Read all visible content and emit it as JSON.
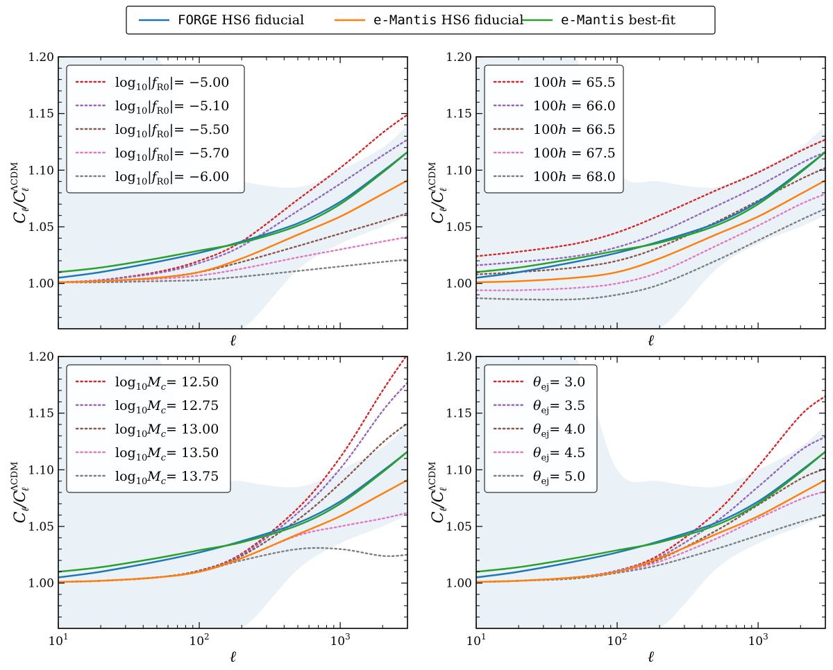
{
  "colors": {
    "blue": "#1f77b4",
    "orange": "#ff7f0e",
    "green": "#2ca02c",
    "red": "#d62728",
    "purple": "#9467bd",
    "brown": "#8c564b",
    "pink": "#e377c2",
    "gray": "#7f7f7f",
    "band": "#eaf2f8"
  },
  "top_legend": {
    "entries": [
      {
        "mono": "FORGE",
        "text": " HS6 fiducial",
        "color": "blue"
      },
      {
        "mono": "e-Mantis",
        "text": " HS6 fiducial",
        "color": "orange"
      },
      {
        "mono": "e-Mantis",
        "text": " best-fit",
        "color": "green"
      }
    ]
  },
  "chart_data": [
    {
      "type": "line",
      "panel": "top-left",
      "xscale": "log",
      "xlim": [
        10,
        3000
      ],
      "ylim": [
        0.96,
        1.2
      ],
      "yticks": [
        "1.00",
        "1.05",
        "1.10",
        "1.15",
        "1.20"
      ],
      "xticks_shown": false,
      "xlabel": "ℓ",
      "ylabel": "C_ℓ/C_ℓ^ΛCDM",
      "legend_position": "top-left",
      "x": [
        10,
        20,
        50,
        100,
        200,
        500,
        1000,
        2000,
        3000
      ],
      "band": {
        "upper": [
          1.2,
          1.2,
          1.2,
          1.1,
          1.09,
          1.085,
          1.1,
          1.12,
          1.14
        ],
        "lower": [
          0.96,
          0.96,
          0.96,
          0.96,
          0.96,
          1.012,
          1.035,
          1.05,
          1.06
        ]
      },
      "solid_series": [
        {
          "color": "blue",
          "values": [
            1.005,
            1.01,
            1.019,
            1.027,
            1.037,
            1.053,
            1.072,
            1.099,
            1.116
          ]
        },
        {
          "color": "orange",
          "values": [
            1.001,
            1.002,
            1.005,
            1.01,
            1.022,
            1.043,
            1.059,
            1.079,
            1.091
          ]
        },
        {
          "color": "green",
          "values": [
            1.01,
            1.014,
            1.022,
            1.029,
            1.036,
            1.051,
            1.07,
            1.098,
            1.116
          ]
        }
      ],
      "dotted_series": [
        {
          "name": "log₁₀|f_R0| = −5.00",
          "label_pre": "log",
          "label_sub": "10",
          "label_body": "|f",
          "label_sub2": "R0",
          "label_post": "|= −5.00",
          "color": "red",
          "values": [
            1.001,
            1.003,
            1.01,
            1.02,
            1.037,
            1.074,
            1.102,
            1.133,
            1.149
          ]
        },
        {
          "name": "log₁₀|f_R0| = −5.10",
          "label_pre": "log",
          "label_sub": "10",
          "label_body": "|f",
          "label_sub2": "R0",
          "label_post": "|= −5.10",
          "color": "purple",
          "values": [
            1.001,
            1.003,
            1.009,
            1.018,
            1.033,
            1.064,
            1.088,
            1.113,
            1.127
          ]
        },
        {
          "name": "log₁₀|f_R0| = −5.50",
          "label_pre": "log",
          "label_sub": "10",
          "label_body": "|f",
          "label_sub2": "R0",
          "label_post": "|= −5.50",
          "color": "brown",
          "values": [
            1.001,
            1.002,
            1.005,
            1.01,
            1.019,
            1.033,
            1.044,
            1.055,
            1.062
          ]
        },
        {
          "name": "log₁₀|f_R0| = −5.70",
          "label_pre": "log",
          "label_sub": "10",
          "label_body": "|f",
          "label_sub2": "R0",
          "label_post": "|= −5.70",
          "color": "pink",
          "values": [
            1.001,
            1.002,
            1.004,
            1.007,
            1.013,
            1.023,
            1.03,
            1.037,
            1.041
          ]
        },
        {
          "name": "log₁₀|f_R0| = −6.00",
          "label_pre": "log",
          "label_sub": "10",
          "label_body": "|f",
          "label_sub2": "R0",
          "label_post": "|= −6.00",
          "color": "gray",
          "values": [
            1.001,
            1.001,
            1.002,
            1.003,
            1.006,
            1.011,
            1.015,
            1.019,
            1.021
          ]
        }
      ]
    },
    {
      "type": "line",
      "panel": "top-right",
      "xscale": "log",
      "xlim": [
        10,
        3000
      ],
      "ylim": [
        0.96,
        1.2
      ],
      "yticks": [
        "1.00",
        "1.05",
        "1.10",
        "1.15",
        "1.20"
      ],
      "xticks_shown": false,
      "xlabel": "ℓ",
      "ylabel": "C_ℓ/C_ℓ^ΛCDM",
      "legend_position": "top-left",
      "x": [
        10,
        20,
        50,
        100,
        200,
        500,
        1000,
        2000,
        3000
      ],
      "band": {
        "upper": [
          1.2,
          1.2,
          1.2,
          1.1,
          1.09,
          1.085,
          1.1,
          1.12,
          1.14
        ],
        "lower": [
          0.96,
          0.96,
          0.96,
          0.96,
          0.96,
          1.012,
          1.035,
          1.05,
          1.06
        ]
      },
      "solid_series": [
        {
          "color": "blue",
          "values": [
            1.005,
            1.01,
            1.019,
            1.027,
            1.037,
            1.053,
            1.072,
            1.099,
            1.116
          ]
        },
        {
          "color": "orange",
          "values": [
            1.001,
            1.002,
            1.005,
            1.01,
            1.022,
            1.043,
            1.059,
            1.079,
            1.091
          ]
        },
        {
          "color": "green",
          "values": [
            1.01,
            1.014,
            1.022,
            1.029,
            1.036,
            1.051,
            1.07,
            1.098,
            1.116
          ]
        }
      ],
      "dotted_series": [
        {
          "name": "100h = 65.5",
          "label_pre": "100",
          "label_sub": "",
          "label_body": "h",
          "label_sub2": "",
          "label_post": " = 65.5",
          "color": "red",
          "values": [
            1.024,
            1.028,
            1.035,
            1.045,
            1.06,
            1.082,
            1.098,
            1.117,
            1.127
          ]
        },
        {
          "name": "100h = 66.0",
          "label_pre": "100",
          "label_sub": "",
          "label_body": "h",
          "label_sub2": "",
          "label_post": " = 66.0",
          "color": "purple",
          "values": [
            1.016,
            1.019,
            1.024,
            1.032,
            1.045,
            1.068,
            1.086,
            1.106,
            1.116
          ]
        },
        {
          "name": "100h = 66.5",
          "label_pre": "100",
          "label_sub": "",
          "label_body": "h",
          "label_sub2": "",
          "label_post": " = 66.5",
          "color": "brown",
          "values": [
            1.008,
            1.01,
            1.014,
            1.02,
            1.032,
            1.054,
            1.073,
            1.092,
            1.102
          ]
        },
        {
          "name": "100h = 67.5",
          "label_pre": "100",
          "label_sub": "",
          "label_body": "h",
          "label_sub2": "",
          "label_post": " = 67.5",
          "color": "pink",
          "values": [
            0.994,
            0.994,
            0.996,
            1.0,
            1.01,
            1.033,
            1.051,
            1.07,
            1.079
          ]
        },
        {
          "name": "100h = 68.0",
          "label_pre": "100",
          "label_sub": "",
          "label_body": "h",
          "label_sub2": "",
          "label_post": " = 68.0",
          "color": "gray",
          "values": [
            0.987,
            0.986,
            0.986,
            0.99,
            0.999,
            1.02,
            1.038,
            1.056,
            1.066
          ]
        }
      ]
    },
    {
      "type": "line",
      "panel": "bottom-left",
      "xscale": "log",
      "xlim": [
        10,
        3000
      ],
      "ylim": [
        0.96,
        1.2
      ],
      "yticks": [
        "1.00",
        "1.05",
        "1.10",
        "1.15",
        "1.20"
      ],
      "xticks_shown": true,
      "xlabel": "ℓ",
      "ylabel": "C_ℓ/C_ℓ^ΛCDM",
      "legend_position": "top-left",
      "x": [
        10,
        20,
        50,
        100,
        200,
        500,
        1000,
        2000,
        3000
      ],
      "band": {
        "upper": [
          1.2,
          1.2,
          1.2,
          1.1,
          1.09,
          1.085,
          1.1,
          1.12,
          1.14
        ],
        "lower": [
          0.96,
          0.96,
          0.96,
          0.96,
          0.96,
          1.012,
          1.035,
          1.05,
          1.06
        ]
      },
      "solid_series": [
        {
          "color": "blue",
          "values": [
            1.005,
            1.01,
            1.019,
            1.027,
            1.037,
            1.053,
            1.072,
            1.099,
            1.116
          ]
        },
        {
          "color": "orange",
          "values": [
            1.001,
            1.002,
            1.005,
            1.01,
            1.022,
            1.043,
            1.059,
            1.079,
            1.091
          ]
        },
        {
          "color": "green",
          "values": [
            1.01,
            1.014,
            1.022,
            1.029,
            1.036,
            1.051,
            1.07,
            1.098,
            1.116
          ]
        }
      ],
      "dotted_series": [
        {
          "name": "log₁₀M_c = 12.50",
          "label_pre": "log",
          "label_sub": "10",
          "label_body": "M",
          "label_sub2": "c",
          "label_post": "= 12.50",
          "color": "red",
          "values": [
            1.001,
            1.002,
            1.005,
            1.011,
            1.026,
            1.066,
            1.111,
            1.17,
            1.202
          ]
        },
        {
          "name": "log₁₀M_c = 12.75",
          "label_pre": "log",
          "label_sub": "10",
          "label_body": "M",
          "label_sub2": "c",
          "label_post": "= 12.75",
          "color": "purple",
          "values": [
            1.001,
            1.002,
            1.005,
            1.011,
            1.025,
            1.062,
            1.101,
            1.152,
            1.177
          ]
        },
        {
          "name": "log₁₀M_c = 13.00",
          "label_pre": "log",
          "label_sub": "10",
          "label_body": "M",
          "label_sub2": "c",
          "label_post": "= 13.00",
          "color": "brown",
          "values": [
            1.001,
            1.002,
            1.005,
            1.011,
            1.024,
            1.056,
            1.088,
            1.124,
            1.141
          ]
        },
        {
          "name": "log₁₀M_c = 13.50",
          "label_pre": "log",
          "label_sub": "10",
          "label_body": "M",
          "label_sub2": "c",
          "label_post": "= 13.50",
          "color": "pink",
          "values": [
            1.001,
            1.002,
            1.005,
            1.01,
            1.022,
            1.042,
            1.05,
            1.057,
            1.062
          ]
        },
        {
          "name": "log₁₀M_c = 13.75",
          "label_pre": "log",
          "label_sub": "10",
          "label_body": "M",
          "label_sub2": "c",
          "label_post": "= 13.75",
          "color": "gray",
          "values": [
            1.001,
            1.002,
            1.005,
            1.01,
            1.02,
            1.03,
            1.03,
            1.024,
            1.025
          ]
        }
      ]
    },
    {
      "type": "line",
      "panel": "bottom-right",
      "xscale": "log",
      "xlim": [
        10,
        3000
      ],
      "ylim": [
        0.96,
        1.2
      ],
      "yticks": [
        "1.00",
        "1.05",
        "1.10",
        "1.15",
        "1.20"
      ],
      "xticks_shown": true,
      "xlabel": "ℓ",
      "ylabel": "C_ℓ/C_ℓ^ΛCDM",
      "legend_position": "top-left",
      "x": [
        10,
        20,
        50,
        100,
        200,
        500,
        1000,
        2000,
        3000
      ],
      "band": {
        "upper": [
          1.2,
          1.2,
          1.2,
          1.1,
          1.09,
          1.085,
          1.1,
          1.12,
          1.14
        ],
        "lower": [
          0.96,
          0.96,
          0.96,
          0.96,
          0.96,
          1.012,
          1.035,
          1.05,
          1.06
        ]
      },
      "solid_series": [
        {
          "color": "blue",
          "values": [
            1.005,
            1.01,
            1.019,
            1.027,
            1.037,
            1.053,
            1.072,
            1.099,
            1.116
          ]
        },
        {
          "color": "orange",
          "values": [
            1.001,
            1.002,
            1.005,
            1.01,
            1.022,
            1.043,
            1.059,
            1.079,
            1.091
          ]
        },
        {
          "color": "green",
          "values": [
            1.01,
            1.014,
            1.022,
            1.029,
            1.036,
            1.051,
            1.07,
            1.098,
            1.116
          ]
        }
      ],
      "dotted_series": [
        {
          "name": "θ_ej = 3.0",
          "label_pre": "",
          "label_sub": "",
          "label_body": "θ",
          "label_sub2": "ej",
          "label_post": "= 3.0",
          "color": "red",
          "values": [
            1.001,
            1.002,
            1.005,
            1.011,
            1.025,
            1.062,
            1.103,
            1.148,
            1.165
          ]
        },
        {
          "name": "θ_ej = 3.5",
          "label_pre": "",
          "label_sub": "",
          "label_body": "θ",
          "label_sub2": "ej",
          "label_post": "= 3.5",
          "color": "purple",
          "values": [
            1.001,
            1.002,
            1.005,
            1.011,
            1.023,
            1.054,
            1.085,
            1.117,
            1.129
          ]
        },
        {
          "name": "θ_ej = 4.0",
          "label_pre": "",
          "label_sub": "",
          "label_body": "θ",
          "label_sub2": "ej",
          "label_post": "= 4.0",
          "color": "brown",
          "values": [
            1.001,
            1.002,
            1.005,
            1.01,
            1.021,
            1.046,
            1.069,
            1.092,
            1.101
          ]
        },
        {
          "name": "θ_ej = 4.5",
          "label_pre": "",
          "label_sub": "",
          "label_body": "θ",
          "label_sub2": "ej",
          "label_post": "= 4.5",
          "color": "pink",
          "values": [
            1.001,
            1.002,
            1.005,
            1.01,
            1.019,
            1.039,
            1.057,
            1.074,
            1.081
          ]
        },
        {
          "name": "θ_ej = 5.0",
          "label_pre": "",
          "label_sub": "",
          "label_body": "θ",
          "label_sub2": "ej",
          "label_post": "= 5.0",
          "color": "gray",
          "values": [
            1.001,
            1.002,
            1.004,
            1.009,
            1.016,
            1.03,
            1.042,
            1.054,
            1.06
          ]
        }
      ]
    }
  ]
}
